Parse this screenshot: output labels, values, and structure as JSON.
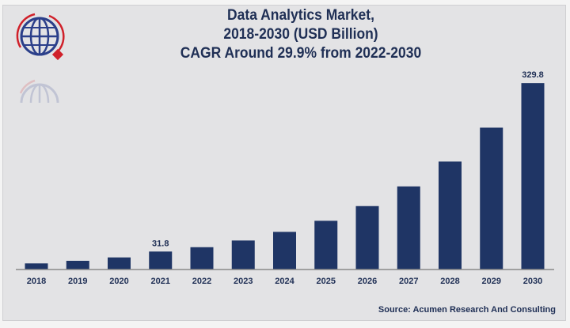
{
  "chart_data": {
    "type": "bar",
    "title": [
      "Data Analytics Market,",
      "2018-2030 (USD Billion)",
      "CAGR Around 29.9% from 2022-2030"
    ],
    "categories": [
      "2018",
      "2019",
      "2020",
      "2021",
      "2022",
      "2023",
      "2024",
      "2025",
      "2026",
      "2027",
      "2028",
      "2029",
      "2030"
    ],
    "values": [
      10.8,
      15.4,
      21.4,
      31.8,
      39.5,
      51.3,
      66.6,
      86.2,
      112.2,
      147,
      191,
      251,
      329.8
    ],
    "data_labels": {
      "2021": "31.8",
      "2030": "329.8"
    },
    "xlabel": "",
    "ylabel": "",
    "ylim": [
      0,
      330
    ],
    "grid": false,
    "legend": "none",
    "bar_color": "#1f3565",
    "source": "Source: Acumen Research And Consulting"
  },
  "logo": {
    "name": "globe-logo-icon",
    "colors": [
      "#2b3f8a",
      "#d0202a"
    ]
  }
}
